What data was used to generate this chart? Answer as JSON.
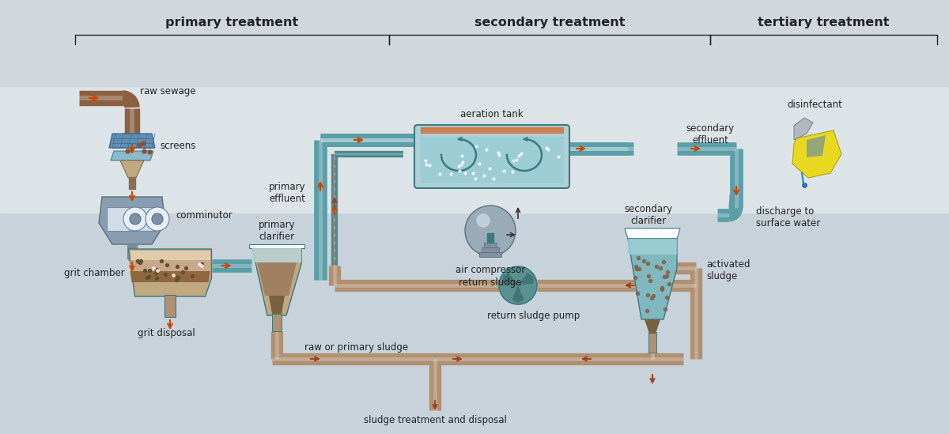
{
  "bg_top": "#cdd5dc",
  "bg_bottom": "#d8dfe6",
  "pipe_color": "#5a9ea8",
  "pipe_highlight": "#7abcc4",
  "pipe_dark": "#3a7a84",
  "arrow_color": "#cc4400",
  "sludge_pipe": "#b09070",
  "sludge_arrow": "#994422",
  "grit_color": "#a08060",
  "tank_water": "#7ab8c0",
  "tank_bg": "#b0d0d8",
  "primary_label": "primary treatment",
  "secondary_label": "secondary treatment",
  "tertiary_label": "tertiary treatment",
  "labels": {
    "raw_sewage": "raw sewage",
    "screens": "screens",
    "comminutor": "comminutor",
    "grit_chamber": "grit chamber",
    "grit_disposal": "grit disposal",
    "primary_clarifier": "primary\nclarifier",
    "primary_effluent": "primary\neffluent",
    "raw_primary_sludge": "raw or primary sludge",
    "sludge_treatment": "sludge treatment and disposal",
    "aeration_tank": "aeration tank",
    "air_compressor": "air compressor",
    "return_sludge": "return sludge",
    "return_sludge_pump": "return sludge pump",
    "activated_sludge": "activated\nsludge",
    "secondary_clarifier": "secondary\nclarifier",
    "secondary_effluent": "secondary\neffluent",
    "disinfectant": "disinfectant",
    "discharge": "discharge to\nsurface water"
  },
  "font_color": "#222222",
  "label_fontsize": 8.5,
  "header_fontsize": 11.5
}
